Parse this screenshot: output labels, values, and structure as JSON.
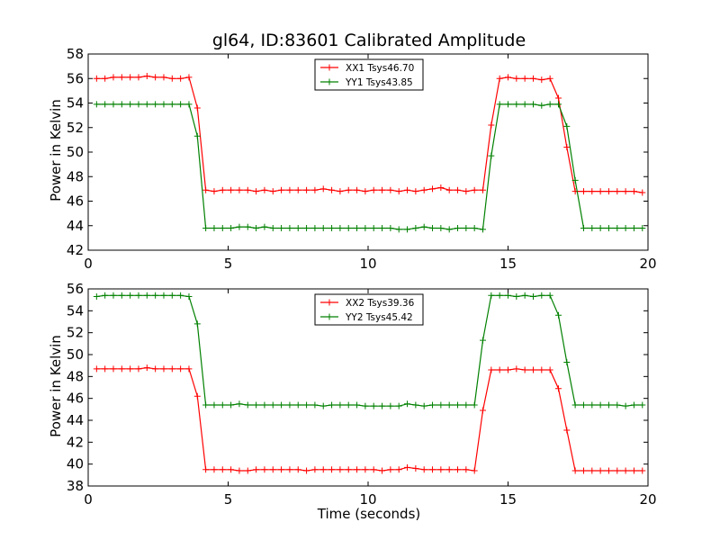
{
  "chart_data": [
    {
      "type": "line",
      "title": "gl64, ID:83601 Calibrated Amplitude",
      "xlabel": "",
      "ylabel": "Power in Kelvin",
      "xlim": [
        0,
        20
      ],
      "ylim": [
        42,
        58
      ],
      "xticks": [
        "0",
        "5",
        "10",
        "15",
        "20"
      ],
      "yticks": [
        "42",
        "44",
        "46",
        "48",
        "50",
        "52",
        "54",
        "56",
        "58"
      ],
      "legend_position": "top-center",
      "series": [
        {
          "name": "XX1 Tsys46.70",
          "color": "#ff0000",
          "x": [
            0.3,
            0.6,
            0.9,
            1.2,
            1.5,
            1.8,
            2.1,
            2.4,
            2.7,
            3.0,
            3.3,
            3.6,
            3.9,
            4.2,
            4.5,
            4.8,
            5.1,
            5.4,
            5.7,
            6.0,
            6.3,
            6.6,
            6.9,
            7.2,
            7.5,
            7.8,
            8.1,
            8.4,
            8.7,
            9.0,
            9.3,
            9.6,
            9.9,
            10.2,
            10.5,
            10.8,
            11.1,
            11.4,
            11.7,
            12.0,
            12.3,
            12.6,
            12.9,
            13.2,
            13.5,
            13.8,
            14.1,
            14.4,
            14.7,
            15.0,
            15.3,
            15.6,
            15.9,
            16.2,
            16.5,
            16.8,
            17.1,
            17.4,
            17.7,
            18.0,
            18.3,
            18.6,
            18.9,
            19.2,
            19.5,
            19.8
          ],
          "y": [
            56.0,
            56.0,
            56.1,
            56.1,
            56.1,
            56.1,
            56.2,
            56.1,
            56.1,
            56.0,
            56.0,
            56.1,
            53.6,
            46.9,
            46.8,
            46.9,
            46.9,
            46.9,
            46.9,
            46.8,
            46.9,
            46.8,
            46.9,
            46.9,
            46.9,
            46.9,
            46.9,
            47.0,
            46.9,
            46.8,
            46.9,
            46.9,
            46.8,
            46.9,
            46.9,
            46.9,
            46.8,
            46.9,
            46.8,
            46.9,
            47.0,
            47.1,
            46.9,
            46.9,
            46.8,
            46.9,
            46.9,
            52.2,
            56.0,
            56.1,
            56.0,
            56.0,
            56.0,
            55.9,
            56.0,
            54.4,
            50.4,
            46.8,
            46.8,
            46.8,
            46.8,
            46.8,
            46.8,
            46.8,
            46.8,
            46.7
          ]
        },
        {
          "name": "YY1 Tsys43.85",
          "color": "#008000",
          "x": [
            0.3,
            0.6,
            0.9,
            1.2,
            1.5,
            1.8,
            2.1,
            2.4,
            2.7,
            3.0,
            3.3,
            3.6,
            3.9,
            4.2,
            4.5,
            4.8,
            5.1,
            5.4,
            5.7,
            6.0,
            6.3,
            6.6,
            6.9,
            7.2,
            7.5,
            7.8,
            8.1,
            8.4,
            8.7,
            9.0,
            9.3,
            9.6,
            9.9,
            10.2,
            10.5,
            10.8,
            11.1,
            11.4,
            11.7,
            12.0,
            12.3,
            12.6,
            12.9,
            13.2,
            13.5,
            13.8,
            14.1,
            14.4,
            14.7,
            15.0,
            15.3,
            15.6,
            15.9,
            16.2,
            16.5,
            16.8,
            17.1,
            17.4,
            17.7,
            18.0,
            18.3,
            18.6,
            18.9,
            19.2,
            19.5,
            19.8
          ],
          "y": [
            53.9,
            53.9,
            53.9,
            53.9,
            53.9,
            53.9,
            53.9,
            53.9,
            53.9,
            53.9,
            53.9,
            53.9,
            51.3,
            43.8,
            43.8,
            43.8,
            43.8,
            43.9,
            43.9,
            43.8,
            43.9,
            43.8,
            43.8,
            43.8,
            43.8,
            43.8,
            43.8,
            43.8,
            43.8,
            43.8,
            43.8,
            43.8,
            43.8,
            43.8,
            43.8,
            43.8,
            43.7,
            43.7,
            43.8,
            43.9,
            43.8,
            43.8,
            43.7,
            43.8,
            43.8,
            43.8,
            43.7,
            49.7,
            53.9,
            53.9,
            53.9,
            53.9,
            53.9,
            53.8,
            53.9,
            53.9,
            52.1,
            47.7,
            43.8,
            43.8,
            43.8,
            43.8,
            43.8,
            43.8,
            43.8,
            43.8
          ]
        }
      ]
    },
    {
      "type": "line",
      "title": "",
      "xlabel": "Time (seconds)",
      "ylabel": "Power in Kelvin",
      "xlim": [
        0,
        20
      ],
      "ylim": [
        38,
        56
      ],
      "xticks": [
        "0",
        "5",
        "10",
        "15",
        "20"
      ],
      "yticks": [
        "38",
        "40",
        "42",
        "44",
        "46",
        "48",
        "50",
        "52",
        "54",
        "56"
      ],
      "legend_position": "top-center",
      "series": [
        {
          "name": "XX2 Tsys39.36",
          "color": "#ff0000",
          "x": [
            0.3,
            0.6,
            0.9,
            1.2,
            1.5,
            1.8,
            2.1,
            2.4,
            2.7,
            3.0,
            3.3,
            3.6,
            3.9,
            4.2,
            4.5,
            4.8,
            5.1,
            5.4,
            5.7,
            6.0,
            6.3,
            6.6,
            6.9,
            7.2,
            7.5,
            7.8,
            8.1,
            8.4,
            8.7,
            9.0,
            9.3,
            9.6,
            9.9,
            10.2,
            10.5,
            10.8,
            11.1,
            11.4,
            11.7,
            12.0,
            12.3,
            12.6,
            12.9,
            13.2,
            13.5,
            13.8,
            14.1,
            14.4,
            14.7,
            15.0,
            15.3,
            15.6,
            15.9,
            16.2,
            16.5,
            16.8,
            17.1,
            17.4,
            17.7,
            18.0,
            18.3,
            18.6,
            18.9,
            19.2,
            19.5,
            19.8
          ],
          "y": [
            48.7,
            48.7,
            48.7,
            48.7,
            48.7,
            48.7,
            48.8,
            48.7,
            48.7,
            48.7,
            48.7,
            48.7,
            46.2,
            39.5,
            39.5,
            39.5,
            39.5,
            39.4,
            39.4,
            39.5,
            39.5,
            39.5,
            39.5,
            39.5,
            39.5,
            39.4,
            39.5,
            39.5,
            39.5,
            39.5,
            39.5,
            39.5,
            39.5,
            39.5,
            39.4,
            39.5,
            39.5,
            39.7,
            39.6,
            39.5,
            39.5,
            39.5,
            39.5,
            39.5,
            39.5,
            39.4,
            44.9,
            48.6,
            48.6,
            48.6,
            48.7,
            48.6,
            48.6,
            48.6,
            48.6,
            46.9,
            43.1,
            39.4,
            39.4,
            39.4,
            39.4,
            39.4,
            39.4,
            39.4,
            39.4,
            39.4
          ]
        },
        {
          "name": "YY2 Tsys45.42",
          "color": "#008000",
          "x": [
            0.3,
            0.6,
            0.9,
            1.2,
            1.5,
            1.8,
            2.1,
            2.4,
            2.7,
            3.0,
            3.3,
            3.6,
            3.9,
            4.2,
            4.5,
            4.8,
            5.1,
            5.4,
            5.7,
            6.0,
            6.3,
            6.6,
            6.9,
            7.2,
            7.5,
            7.8,
            8.1,
            8.4,
            8.7,
            9.0,
            9.3,
            9.6,
            9.9,
            10.2,
            10.5,
            10.8,
            11.1,
            11.4,
            11.7,
            12.0,
            12.3,
            12.6,
            12.9,
            13.2,
            13.5,
            13.8,
            14.1,
            14.4,
            14.7,
            15.0,
            15.3,
            15.6,
            15.9,
            16.2,
            16.5,
            16.8,
            17.1,
            17.4,
            17.7,
            18.0,
            18.3,
            18.6,
            18.9,
            19.2,
            19.5,
            19.8
          ],
          "y": [
            55.3,
            55.4,
            55.4,
            55.4,
            55.4,
            55.4,
            55.4,
            55.4,
            55.4,
            55.4,
            55.4,
            55.3,
            52.8,
            45.4,
            45.4,
            45.4,
            45.4,
            45.5,
            45.4,
            45.4,
            45.4,
            45.4,
            45.4,
            45.4,
            45.4,
            45.4,
            45.4,
            45.3,
            45.4,
            45.4,
            45.4,
            45.4,
            45.3,
            45.3,
            45.3,
            45.3,
            45.3,
            45.5,
            45.4,
            45.3,
            45.4,
            45.4,
            45.4,
            45.4,
            45.4,
            45.4,
            51.3,
            55.4,
            55.4,
            55.4,
            55.3,
            55.4,
            55.3,
            55.4,
            55.4,
            53.6,
            49.3,
            45.4,
            45.4,
            45.4,
            45.4,
            45.4,
            45.4,
            45.3,
            45.4,
            45.4
          ]
        }
      ]
    }
  ]
}
